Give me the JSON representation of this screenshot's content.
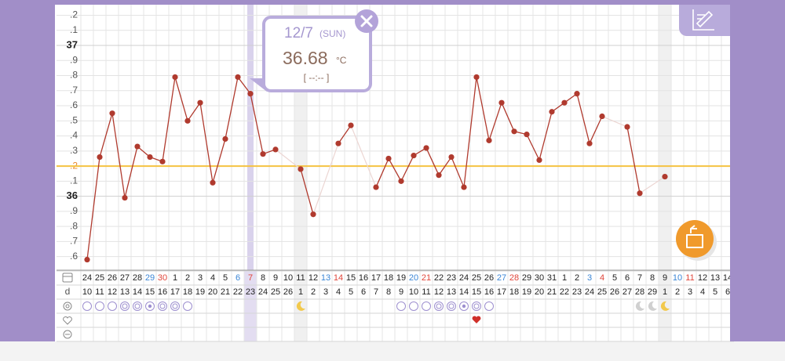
{
  "chart_data": {
    "type": "line",
    "categories": [
      "24",
      "25",
      "26",
      "27",
      "28",
      "29",
      "30",
      "1",
      "2",
      "3",
      "4",
      "5",
      "6",
      "7",
      "8",
      "9",
      "10",
      "11",
      "12",
      "13",
      "14",
      "15",
      "16",
      "17",
      "18",
      "19",
      "20",
      "21",
      "22",
      "23",
      "24",
      "25",
      "26",
      "27",
      "28",
      "29",
      "30",
      "31",
      "1",
      "2",
      "3",
      "4",
      "5",
      "6",
      "7",
      "8",
      "9",
      "10",
      "11",
      "12",
      "13",
      "14"
    ],
    "cycle_label": "d",
    "cycle_days": [
      "10",
      "11",
      "12",
      "13",
      "14",
      "15",
      "16",
      "17",
      "18",
      "19",
      "20",
      "21",
      "22",
      "23",
      "24",
      "25",
      "26",
      "1",
      "2",
      "3",
      "4",
      "5",
      "6",
      "7",
      "8",
      "9",
      "10",
      "11",
      "12",
      "13",
      "14",
      "15",
      "16",
      "17",
      "18",
      "19",
      "20",
      "21",
      "22",
      "23",
      "24",
      "25",
      "26",
      "27",
      "28",
      "29",
      "1",
      "2",
      "3",
      "4",
      "5",
      "6"
    ],
    "series": [
      {
        "color": "#b03a2e",
        "values": [
          35.58,
          36.26,
          36.55,
          35.99,
          36.33,
          36.26,
          36.23,
          36.79,
          36.5,
          36.62,
          36.09,
          36.38,
          36.79,
          36.68,
          36.28,
          36.31,
          null,
          36.18,
          35.88,
          null,
          36.35,
          36.47,
          null,
          36.06,
          36.25,
          36.1,
          36.27,
          36.32,
          36.14,
          36.26,
          36.06,
          36.79,
          36.37,
          36.62,
          36.43,
          36.41,
          36.24,
          36.56,
          36.62,
          36.68,
          36.35,
          36.53,
          null,
          36.46,
          36.02,
          null,
          36.13,
          null,
          null,
          null,
          null,
          null
        ]
      }
    ],
    "cover_line": 36.2,
    "cover_line_color": "#f5c242",
    "ylim": [
      35.51,
      37.27
    ],
    "yticks": [
      {
        "value": 37.2,
        "label": ".2"
      },
      {
        "value": 37.1,
        "label": ".1"
      },
      37,
      {
        "value": 36.9,
        "label": ".9"
      },
      {
        "value": 36.8,
        "label": ".8"
      },
      {
        "value": 36.7,
        "label": ".7"
      },
      {
        "value": 36.6,
        "label": ".6"
      },
      {
        "value": 36.5,
        "label": ".5"
      },
      {
        "value": 36.4,
        "label": ".4"
      },
      {
        "value": 36.3,
        "label": ".3"
      },
      {
        "value": 36.2,
        "label": ".2"
      },
      {
        "value": 36.1,
        "label": ".1"
      },
      36,
      {
        "value": 35.9,
        "label": ".9"
      },
      {
        "value": 35.8,
        "label": ".8"
      },
      {
        "value": 35.7,
        "label": ".7"
      },
      {
        "value": 35.6,
        "label": ".6"
      }
    ],
    "grid": true,
    "popup": {
      "date": "12/7",
      "weekday": "(SUN)",
      "temperature": "36.68",
      "unit": "°C",
      "time": "[ --:-- ]"
    }
  }
}
